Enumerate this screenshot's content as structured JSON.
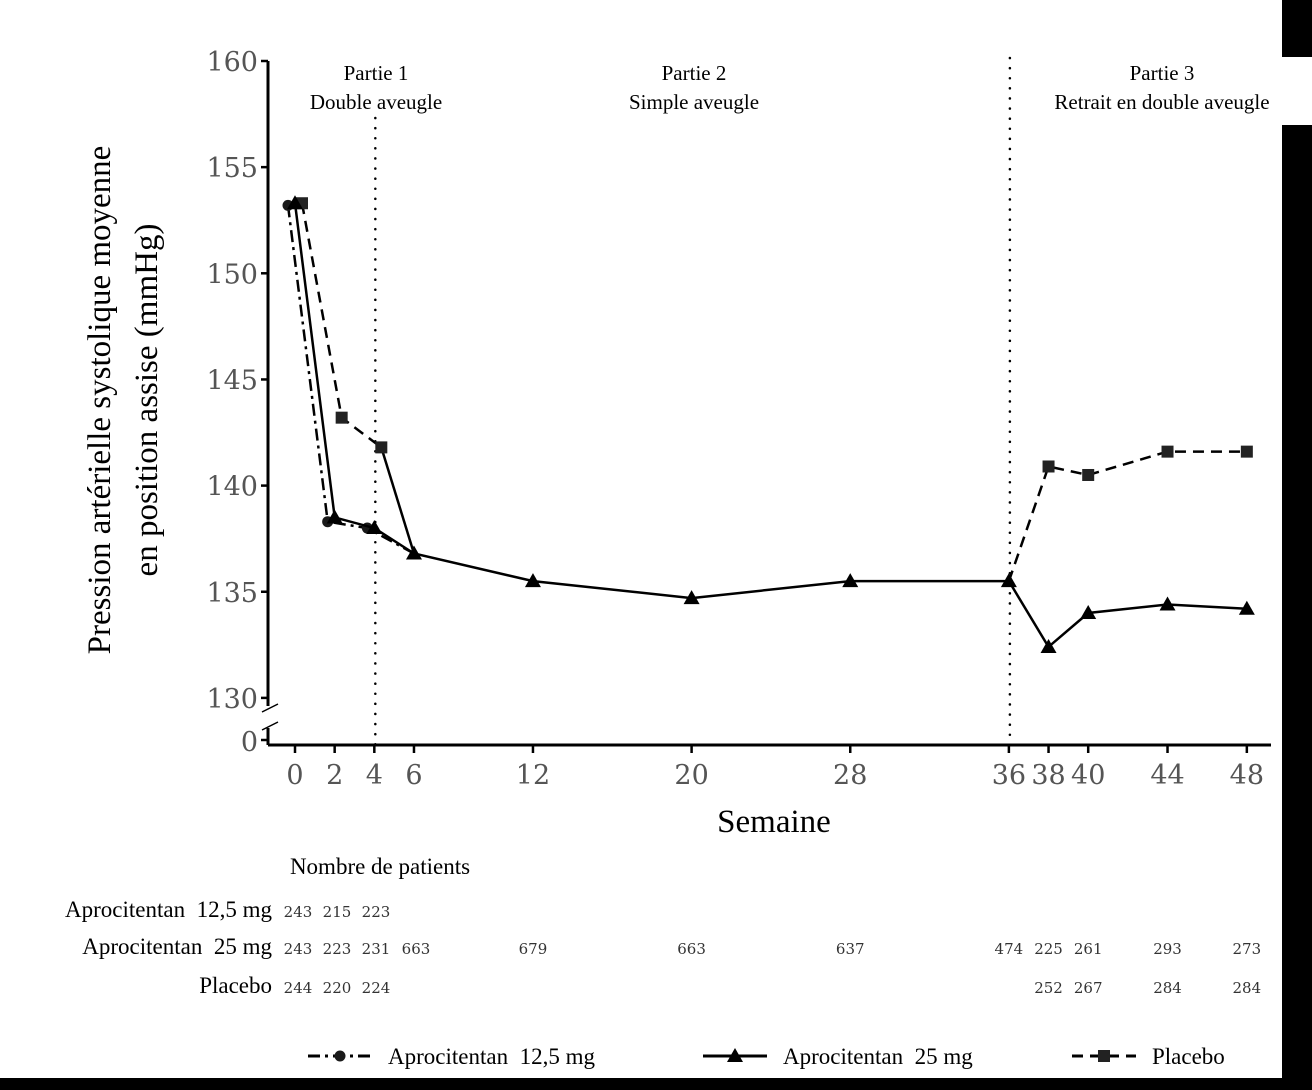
{
  "chart_data": {
    "type": "line",
    "xlabel": "Semaine",
    "ylabel_line1": "Pression artérielle systolique moyenne",
    "ylabel_line2": "en position assise (mmHg)",
    "x_ticks": [
      0,
      2,
      4,
      6,
      12,
      20,
      28,
      36,
      38,
      40,
      44,
      48
    ],
    "y_ticks": [
      130,
      135,
      140,
      145,
      150,
      155,
      160
    ],
    "y_break_label": "0",
    "ylim": [
      130,
      160
    ],
    "xlim": [
      0,
      48
    ],
    "phase_dividers": [
      4,
      36
    ],
    "phases": [
      {
        "title": "Partie 1",
        "subtitle": "Double aveugle",
        "center_week": 2
      },
      {
        "title": "Partie 2",
        "subtitle": "Simple aveugle",
        "center_week": 20
      },
      {
        "title": "Partie 3",
        "subtitle": "Retrait en double aveugle",
        "center_week": 43
      }
    ],
    "series": [
      {
        "name": "Aprocitentan 12,5 mg",
        "style": "dashdot",
        "marker": "circle",
        "x": [
          0,
          2,
          4,
          6
        ],
        "values": [
          153.2,
          138.3,
          138.0,
          136.8
        ],
        "offset": -1
      },
      {
        "name": "Aprocitentan 25 mg",
        "style": "solid",
        "marker": "triangle",
        "x": [
          0,
          2,
          4,
          6,
          12,
          20,
          28,
          36,
          38,
          40,
          44,
          48
        ],
        "values": [
          153.3,
          138.5,
          138.0,
          136.8,
          135.5,
          134.7,
          135.5,
          135.5,
          132.4,
          134.0,
          134.4,
          134.2
        ],
        "offset": 0
      },
      {
        "name": "Placebo",
        "style": "dashed",
        "marker": "square",
        "x": [
          0,
          2,
          4,
          6
        ],
        "values": [
          153.3,
          143.2,
          141.8,
          136.8
        ],
        "offset": 1
      },
      {
        "name": "Placebo",
        "style": "dashed",
        "marker": "square",
        "x": [
          36,
          38,
          40,
          44,
          48
        ],
        "values": [
          135.5,
          140.9,
          140.5,
          141.6,
          141.6
        ],
        "offset": 0
      }
    ]
  },
  "patients": {
    "title": "Nombre de patients",
    "rows": [
      {
        "label": "Aprocitentan  12,5 mg",
        "x": [
          0,
          2,
          4
        ],
        "counts": [
          "243",
          "215",
          "223"
        ]
      },
      {
        "label": "Aprocitentan  25 mg",
        "x": [
          0,
          2,
          4,
          6,
          12,
          20,
          28,
          36,
          38,
          40,
          44,
          48
        ],
        "counts": [
          "243",
          "223",
          "231",
          "663",
          "679",
          "663",
          "637",
          "474",
          "225",
          "261",
          "293",
          "273"
        ]
      },
      {
        "label": "Placebo",
        "x": [
          0,
          2,
          4,
          38,
          40,
          44,
          48
        ],
        "counts": [
          "244",
          "220",
          "224",
          "252",
          "267",
          "284",
          "284"
        ]
      }
    ]
  },
  "legend": [
    {
      "label": "Aprocitentan  12,5 mg",
      "marker": "circle",
      "style": "dashdot"
    },
    {
      "label": "Aprocitentan  25 mg",
      "marker": "triangle",
      "style": "solid"
    },
    {
      "label": "Placebo",
      "marker": "square",
      "style": "dashed"
    }
  ],
  "colors": {
    "line": "#000000",
    "tick_text": "#555555",
    "frame": "#000000"
  }
}
